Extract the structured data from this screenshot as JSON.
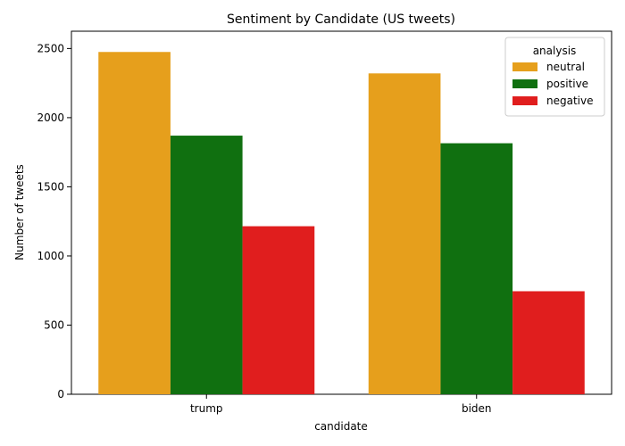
{
  "chart_data": {
    "type": "bar",
    "title": "Sentiment by Candidate (US tweets)",
    "xlabel": "candidate",
    "ylabel": "Number of tweets",
    "categories": [
      "trump",
      "biden"
    ],
    "series": [
      {
        "name": "neutral",
        "color": "#E69F1C",
        "values": [
          2475,
          2320
        ]
      },
      {
        "name": "positive",
        "color": "#107010",
        "values": [
          1870,
          1815
        ]
      },
      {
        "name": "negative",
        "color": "#E01E1E",
        "values": [
          1215,
          745
        ]
      }
    ],
    "ylim": [
      0,
      2625
    ],
    "yticks": [
      0,
      500,
      1000,
      1500,
      2000,
      2500
    ],
    "grid": false,
    "legend": {
      "title": "analysis",
      "placement": "top-right"
    }
  }
}
